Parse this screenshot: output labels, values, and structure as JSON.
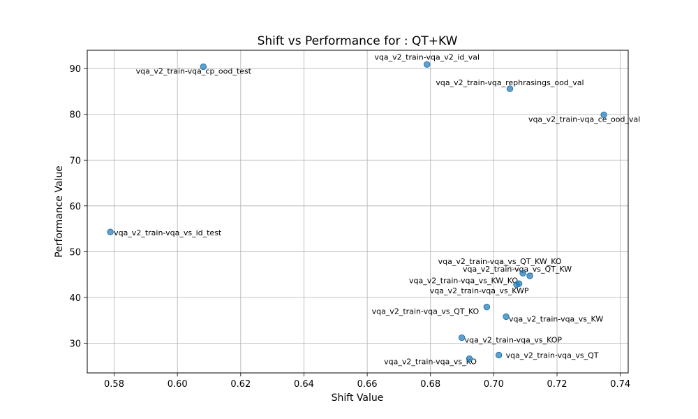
{
  "chart_data": {
    "type": "scatter",
    "title": "Shift vs Performance for : QT+KW",
    "xlabel": "Shift Value",
    "ylabel": "Performance Value",
    "xlim": [
      0.5715,
      0.7425
    ],
    "ylim": [
      23.5,
      94.0
    ],
    "xticks": [
      "0.58",
      "0.60",
      "0.62",
      "0.64",
      "0.66",
      "0.68",
      "0.70",
      "0.72",
      "0.74"
    ],
    "yticks": [
      "30",
      "40",
      "50",
      "60",
      "70",
      "80",
      "90"
    ],
    "grid": true,
    "point_color": "#1f77b4",
    "points": [
      {
        "label": "vqa_v2_train-vqa_cp_ood_test",
        "x": 0.6082,
        "y": 90.4
      },
      {
        "label": "vqa_v2_train-vqa_v2_id_val",
        "x": 0.6789,
        "y": 90.9
      },
      {
        "label": "vqa_v2_train-vqa_rephrasings_ood_val",
        "x": 0.7051,
        "y": 85.6
      },
      {
        "label": "vqa_v2_train-vqa_ce_ood_val",
        "x": 0.7348,
        "y": 79.9
      },
      {
        "label": "vqa_v2_train-vqa_vs_id_test",
        "x": 0.5788,
        "y": 54.3
      },
      {
        "label": "vqa_v2_train-vqa_vs_QT_KW_KO",
        "x": 0.7092,
        "y": 45.3
      },
      {
        "label": "vqa_v2_train-vqa_vs_QT_KW",
        "x": 0.7114,
        "y": 44.7
      },
      {
        "label": "vqa_v2_train-vqa_vs_KW_KO",
        "x": 0.7072,
        "y": 42.8
      },
      {
        "label": "vqa_v2_train-vqa_vs_KWP",
        "x": 0.708,
        "y": 43.0
      },
      {
        "label": "vqa_v2_train-vqa_vs_QT_KO",
        "x": 0.6978,
        "y": 37.9
      },
      {
        "label": "vqa_v2_train-vqa_vs_KW",
        "x": 0.7039,
        "y": 35.8
      },
      {
        "label": "vqa_v2_train-vqa_vs_KOP",
        "x": 0.6899,
        "y": 31.2
      },
      {
        "label": "vqa_v2_train-vqa_vs_QT",
        "x": 0.7016,
        "y": 27.4
      },
      {
        "label": "vqa_v2_train-vqa_vs_KO",
        "x": 0.6923,
        "y": 26.6
      }
    ]
  }
}
